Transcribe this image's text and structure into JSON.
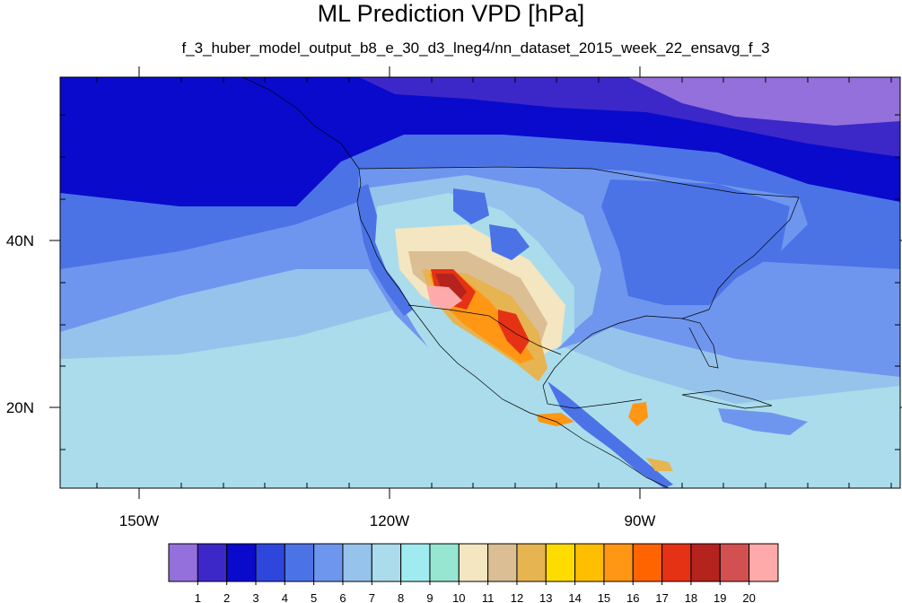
{
  "header": {
    "title": "ML Prediction VPD [hPa]",
    "subtitle": "f_3_huber_model_output_b8_e_30_d3_lneg4/nn_dataset_2015_week_22_ensavg_f_3"
  },
  "axes": {
    "lon_labels": [
      "150W",
      "120W",
      "90W"
    ],
    "lat_labels": [
      "40N",
      "20N"
    ]
  },
  "colorbar": {
    "labels": [
      "1",
      "2",
      "3",
      "4",
      "5",
      "6",
      "7",
      "8",
      "9",
      "10",
      "11",
      "12",
      "13",
      "14",
      "15",
      "16",
      "17",
      "18",
      "19",
      "20"
    ],
    "colors": [
      "#9370db",
      "#3c28c8",
      "#0a0acd",
      "#2d46dc",
      "#4b73e6",
      "#6f96ee",
      "#96c3eb",
      "#aadceb",
      "#a0ebf0",
      "#96e6d2",
      "#f3e6c0",
      "#dcbe94",
      "#e6b450",
      "#ffdc00",
      "#ffbe00",
      "#ff9614",
      "#ff6400",
      "#e63214",
      "#b4231e",
      "#d25050",
      "#ffaaaa"
    ]
  },
  "map_colors": {
    "ocean_far": "#96c3eb",
    "ocean_mid": "#6f96ee",
    "ocean_near": "#aadceb",
    "north": "#0a0acd",
    "north_mid": "#3c28c8",
    "hudson": "#9370db",
    "land_east": "#4b73e6",
    "land_mid": "#6f96ee",
    "land_light": "#96c3eb",
    "land_cyan": "#aadceb",
    "desert_cream": "#f3e6c0",
    "desert_tan": "#dcbe94",
    "desert_gold": "#e6b450",
    "hot_yellow": "#ffdc00",
    "hot_orange": "#ff9614",
    "hot_red": "#e63214",
    "hot_dark": "#b4231e",
    "hot_pink": "#ffaaaa"
  }
}
